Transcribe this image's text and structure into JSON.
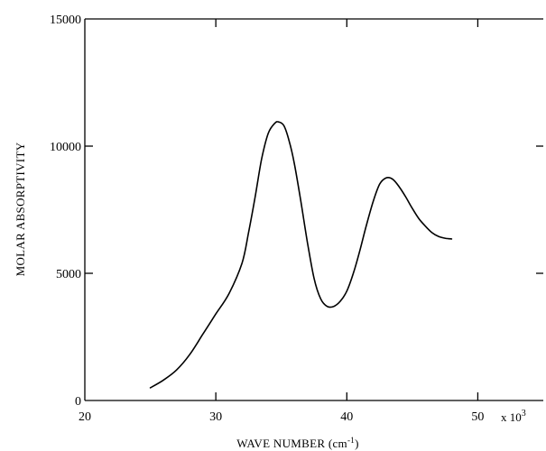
{
  "chart_data": {
    "type": "line",
    "title": "",
    "xlabel": "WAVE  NUMBER (cm",
    "xlabel_sup": "-1",
    "xlabel_suffix": ")",
    "ylabel": "MOLAR  ABSORPTIVITY",
    "x_multiplier_base": "x 10",
    "x_multiplier_exp": "3",
    "xlim": [
      20,
      55
    ],
    "ylim": [
      0,
      15000
    ],
    "x_ticks": [
      20,
      30,
      40,
      50
    ],
    "y_ticks": [
      0,
      5000,
      10000,
      15000
    ],
    "x_tick_labels": [
      "20",
      "30",
      "40",
      "50"
    ],
    "y_tick_labels": [
      "0",
      "5000",
      "10000",
      "15000"
    ],
    "grid": false,
    "series": [
      {
        "x": [
          25.0,
          26.0,
          27.0,
          28.0,
          29.0,
          30.0,
          31.0,
          32.0,
          32.5,
          33.0,
          33.5,
          34.0,
          34.5,
          34.8,
          35.2,
          35.6,
          36.0,
          36.5,
          37.0,
          37.5,
          38.0,
          38.5,
          39.0,
          39.5,
          40.0,
          40.5,
          41.0,
          41.5,
          42.0,
          42.5,
          43.0,
          43.5,
          44.0,
          44.5,
          45.0,
          45.5,
          46.0,
          46.5,
          47.0,
          47.5,
          48.0
        ],
        "y": [
          500,
          800,
          1200,
          1800,
          2600,
          3400,
          4200,
          5400,
          6600,
          8000,
          9500,
          10500,
          10900,
          10950,
          10800,
          10200,
          9300,
          7800,
          6200,
          4800,
          4000,
          3700,
          3700,
          3900,
          4300,
          5000,
          5900,
          6900,
          7800,
          8500,
          8750,
          8700,
          8400,
          8000,
          7550,
          7150,
          6850,
          6600,
          6450,
          6380,
          6350
        ]
      }
    ]
  }
}
